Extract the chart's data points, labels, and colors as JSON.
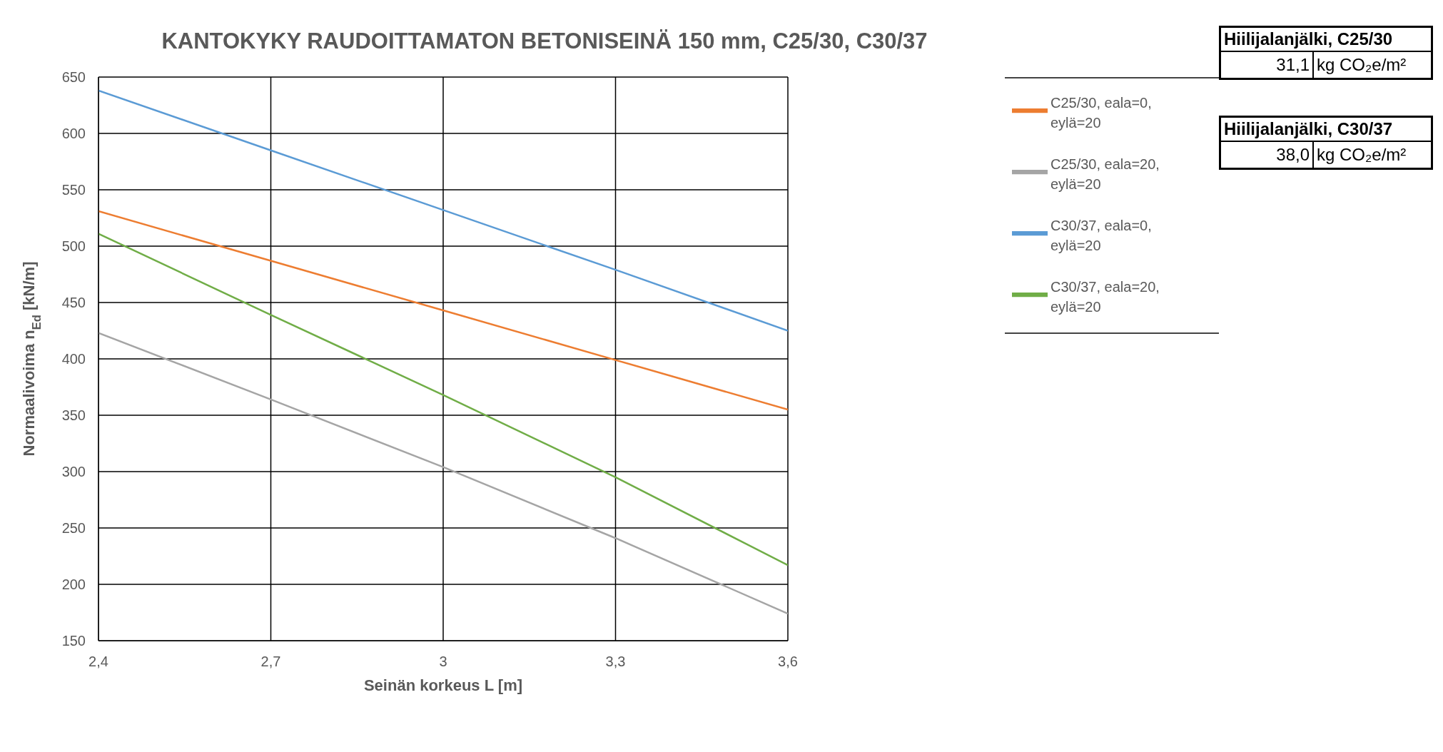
{
  "chart_data": {
    "type": "line",
    "title": "KANTOKYKY RAUDOITTAMATON BETONISEINÄ 150 mm, C25/30, C30/37",
    "xlabel": "Seinän korkeus L [m]",
    "ylabel": "Normaalivoima n$_{Ed}$ [kN/m]",
    "x": [
      2.4,
      2.7,
      3.0,
      3.3,
      3.6
    ],
    "series": [
      {
        "name": "C25/30, eala=0, eylä=20",
        "color": "#ed7d31",
        "values": [
          531,
          487,
          443,
          399,
          355
        ]
      },
      {
        "name": "C25/30, eala=20, eylä=20",
        "color": "#a5a5a5",
        "values": [
          423,
          364,
          304,
          241,
          174
        ]
      },
      {
        "name": "C30/37, eala=0, eylä=20",
        "color": "#5b9bd5",
        "values": [
          638,
          585,
          532,
          479,
          425
        ]
      },
      {
        "name": "C30/37, eala=20, eylä=20",
        "color": "#70ad47",
        "values": [
          511,
          439,
          368,
          295,
          217
        ]
      }
    ],
    "xlim": [
      2.4,
      3.6
    ],
    "xticks": [
      {
        "value": 2.4,
        "label": "2,4"
      },
      {
        "value": 2.7,
        "label": "2,7"
      },
      3,
      {
        "value": 3.3,
        "label": "3,3"
      },
      {
        "value": 3.6,
        "label": "3,6"
      }
    ],
    "ylim": [
      150,
      650
    ],
    "yticks": [
      150,
      200,
      250,
      300,
      350,
      400,
      450,
      500,
      550,
      600,
      650
    ],
    "grid": true,
    "legend": "right",
    "marker": "none",
    "line_style": "solid",
    "annotations": [
      "Hiilijalanjälki, C25/30",
      "31,1",
      "kg CO₂e/m²",
      "Hiilijalanjälki, C30/37",
      "38,0",
      "kg CO₂e/m²"
    ]
  }
}
